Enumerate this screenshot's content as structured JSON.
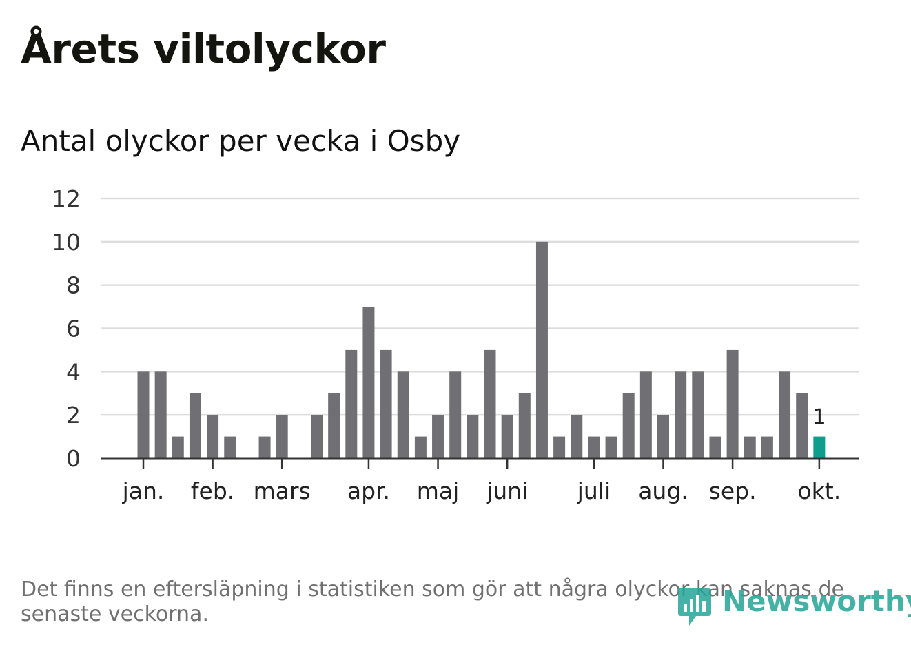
{
  "title": "Årets viltolyckor",
  "subtitle": "Antal olyckor per vecka i Osby",
  "footnote": "Det finns en eftersläpning i statistiken som gör att några olyckor kan saknas de senaste veckorna.",
  "brand": "Newsworthy",
  "colors": {
    "bar": "#706f74",
    "highlight": "#0f9e8e",
    "grid": "#dddddd",
    "axis": "#333333",
    "brand": "#23a596"
  },
  "chart_data": {
    "type": "bar",
    "title": "Antal olyckor per vecka i Osby",
    "xlabel": "",
    "ylabel": "",
    "ylim": [
      0,
      12
    ],
    "yticks": [
      0,
      2,
      4,
      6,
      8,
      10,
      12
    ],
    "grid": true,
    "weeks": [
      1,
      2,
      3,
      4,
      5,
      6,
      7,
      8,
      9,
      10,
      11,
      12,
      13,
      14,
      15,
      16,
      17,
      18,
      19,
      20,
      21,
      22,
      23,
      24,
      25,
      26,
      27,
      28,
      29,
      30,
      31,
      32,
      33,
      34,
      35,
      36,
      37,
      38,
      39,
      40
    ],
    "values": [
      4,
      4,
      1,
      3,
      2,
      1,
      0,
      1,
      2,
      0,
      2,
      3,
      5,
      7,
      5,
      4,
      1,
      2,
      4,
      2,
      5,
      2,
      3,
      10,
      1,
      2,
      1,
      1,
      3,
      4,
      2,
      4,
      4,
      1,
      5,
      1,
      1,
      4,
      3,
      1
    ],
    "highlight_index": 39,
    "data_labels": [
      {
        "index": 39,
        "text": "1"
      }
    ],
    "month_ticks": [
      {
        "label": "jan.",
        "week": 1
      },
      {
        "label": "feb.",
        "week": 5
      },
      {
        "label": "mars",
        "week": 9
      },
      {
        "label": "apr.",
        "week": 14
      },
      {
        "label": "maj",
        "week": 18
      },
      {
        "label": "juni",
        "week": 22
      },
      {
        "label": "juli",
        "week": 27
      },
      {
        "label": "aug.",
        "week": 31
      },
      {
        "label": "sep.",
        "week": 35
      },
      {
        "label": "okt.",
        "week": 40
      }
    ]
  }
}
